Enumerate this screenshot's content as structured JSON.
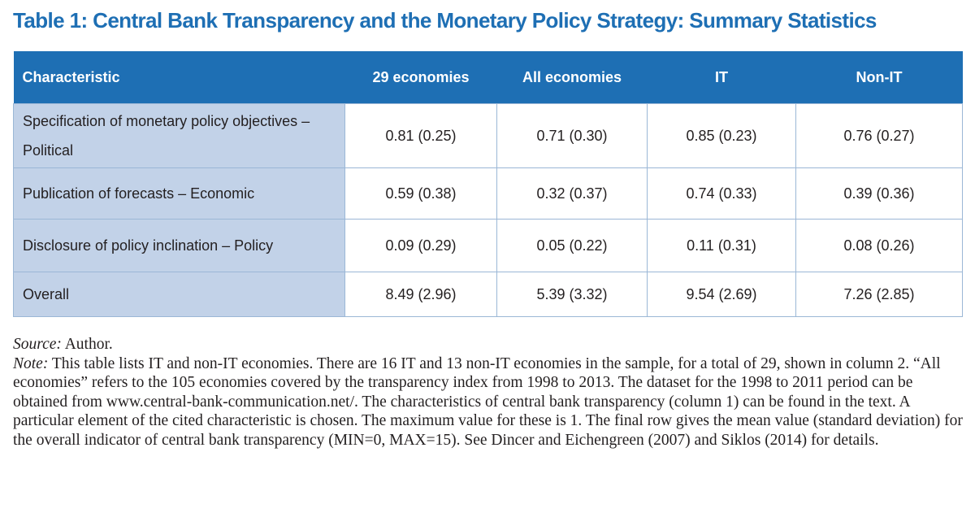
{
  "title": "Table 1: Central Bank Transparency and the Monetary Policy Strategy: Summary Statistics",
  "table": {
    "headers": [
      "Characteristic",
      "29 economies",
      "All economies",
      "IT",
      "Non-IT"
    ],
    "rows": [
      {
        "label": "Specification of monetary policy objectives – Political",
        "values": [
          "0.81 (0.25)",
          "0.71 (0.30)",
          "0.85 (0.23)",
          "0.76 (0.27)"
        ]
      },
      {
        "label": "Publication of forecasts – Economic",
        "values": [
          "0.59 (0.38)",
          "0.32 (0.37)",
          "0.74 (0.33)",
          "0.39 (0.36)"
        ]
      },
      {
        "label": "Disclosure of policy inclination – Policy",
        "values": [
          "0.09 (0.29)",
          "0.05 (0.22)",
          "0.11 (0.31)",
          "0.08 (0.26)"
        ]
      },
      {
        "label": "Overall",
        "values": [
          "8.49 (2.96)",
          "5.39 (3.32)",
          "9.54 (2.69)",
          "7.26 (2.85)"
        ]
      }
    ]
  },
  "source": {
    "label": "Source:",
    "text": " Author."
  },
  "note": {
    "label": "Note:",
    "text": " This table lists IT and non-IT economies. There are 16 IT and 13 non-IT economies in the sample, for a total of 29, shown in column 2. “All economies” refers to the 105 economies covered by the transparency index from 1998 to 2013. The dataset for the 1998 to 2011 period can be obtained from www.central-bank-communication.net/. The characteristics of central bank transparency (column 1) can be found in the text. A particular element of the cited characteristic is chosen. The maximum value for these is 1. The final row gives the mean value (standard deviation) for the overall indicator of central bank transparency (MIN=0, MAX=15). See Dincer and Eichengreen (2007) and Siklos (2014) for details."
  },
  "colors": {
    "header_bg": "#1e6fb4",
    "label_cell_bg": "#c2d2e8",
    "border": "#9bb7d6",
    "title": "#1e6fb4"
  }
}
